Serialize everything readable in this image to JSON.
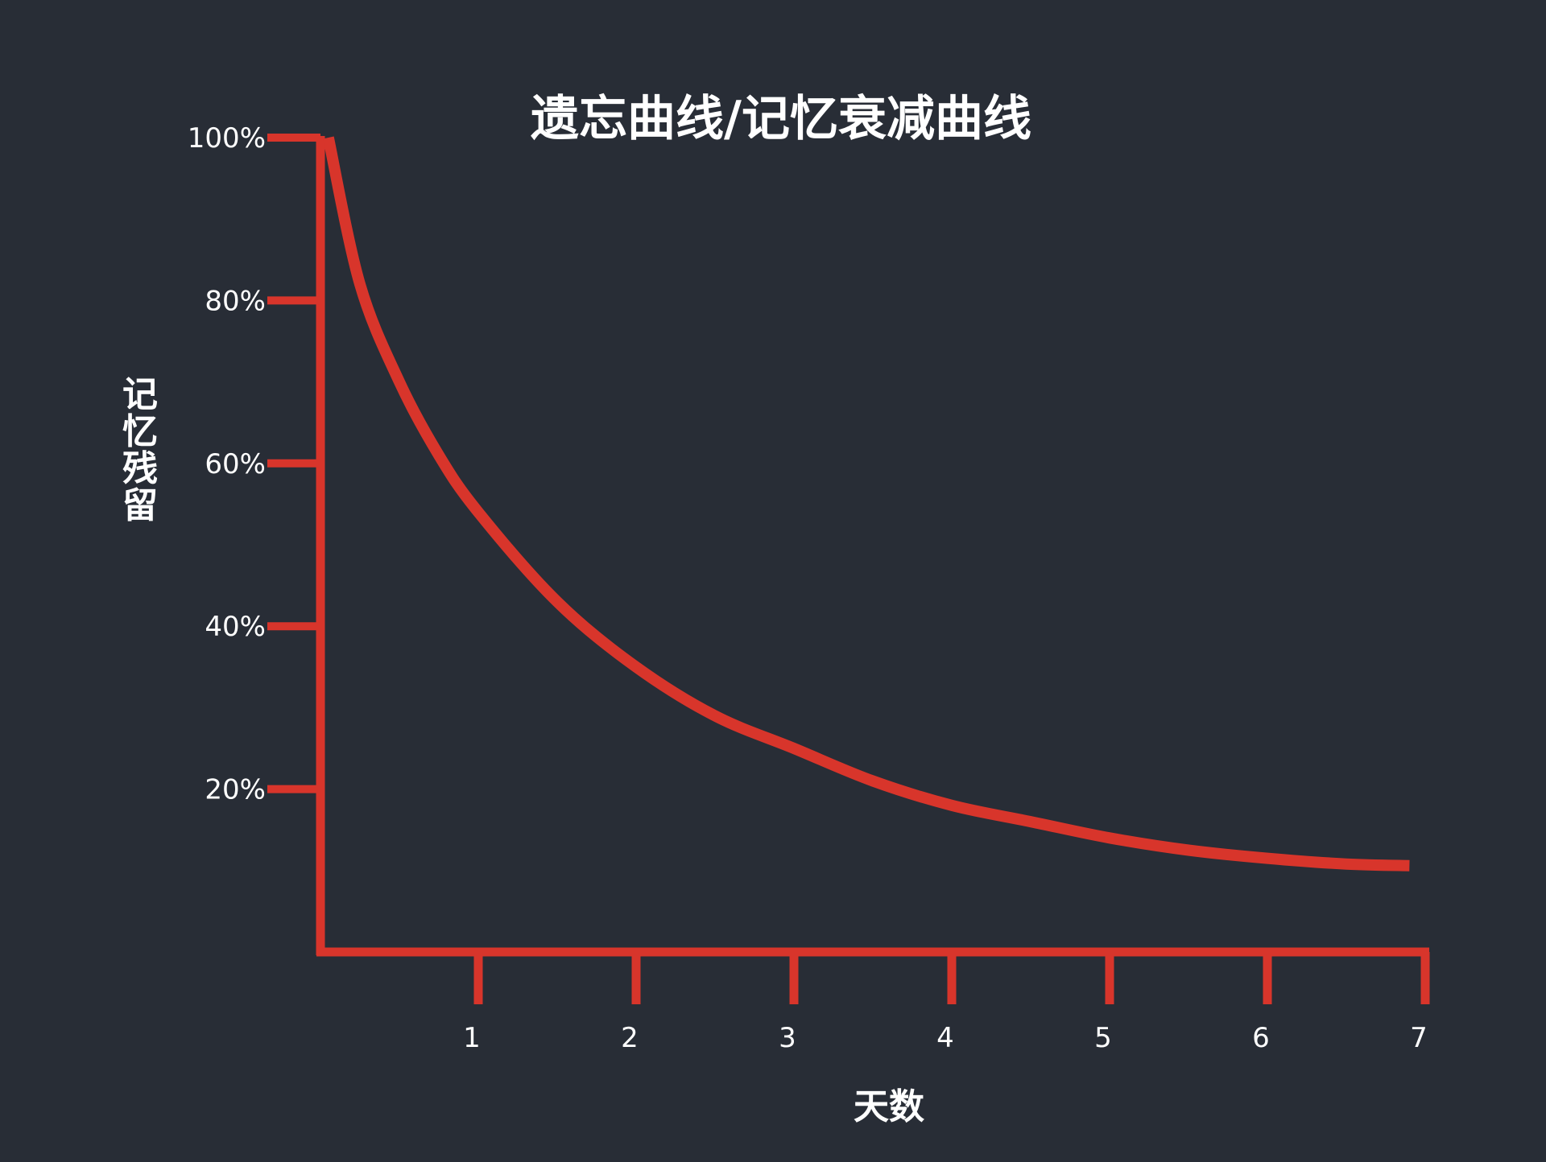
{
  "chart_data": {
    "type": "line",
    "title": "遗忘曲线/记忆衰减曲线",
    "xlabel": "天数",
    "ylabel": "记忆残留",
    "xlim": [
      0,
      7
    ],
    "ylim": [
      0,
      100
    ],
    "x_ticks": [
      "1",
      "2",
      "3",
      "4",
      "5",
      "6",
      "7"
    ],
    "y_ticks": [
      "20%",
      "40%",
      "60%",
      "80%",
      "100%"
    ],
    "y_tick_values": [
      20,
      40,
      60,
      80,
      100
    ],
    "grid": false,
    "legend": "none",
    "colors": {
      "background": "#282d36",
      "line": "#d8352b",
      "axis": "#d8352b",
      "text": "#ffffff"
    },
    "series": [
      {
        "x": [
          0.05,
          0.25,
          0.5,
          0.75,
          1,
          1.5,
          2,
          2.5,
          3,
          3.5,
          4,
          4.5,
          5,
          5.5,
          6,
          6.5,
          6.9
        ],
        "y": [
          100,
          82,
          70,
          61,
          54,
          43,
          35,
          29,
          25,
          21,
          18,
          16,
          14,
          12.5,
          11.5,
          10.8,
          10.6
        ]
      }
    ]
  }
}
